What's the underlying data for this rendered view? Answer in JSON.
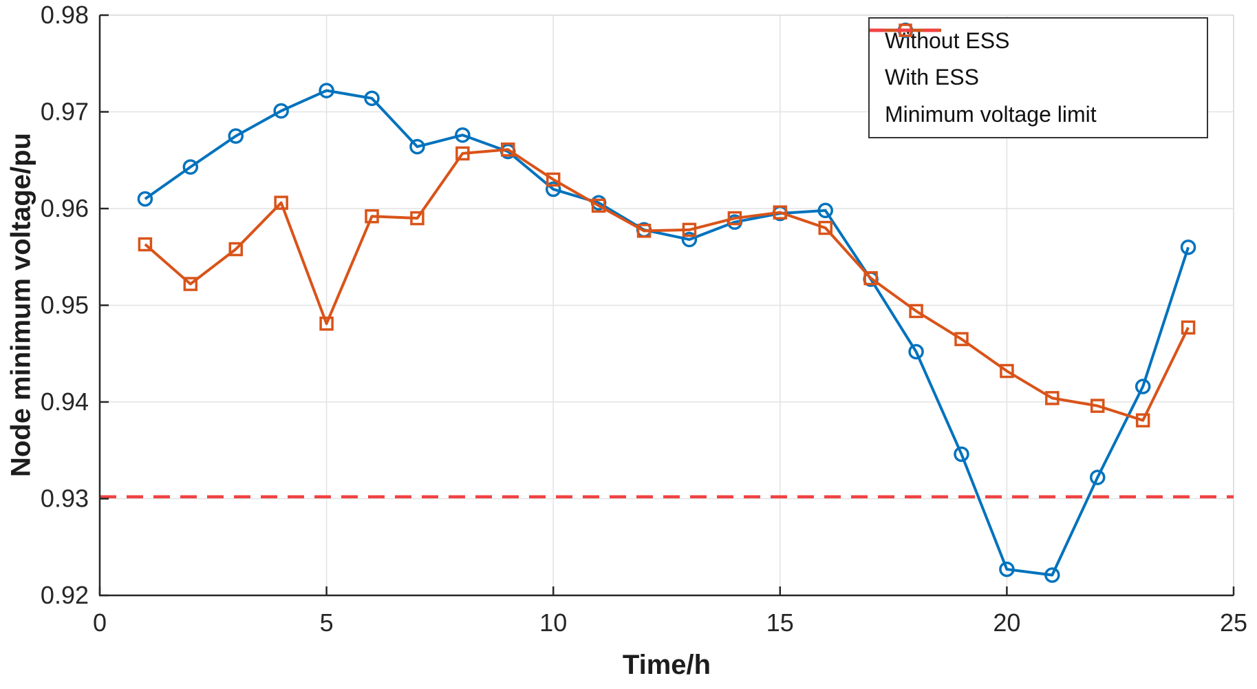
{
  "chart_data": {
    "type": "line",
    "title": "",
    "xlabel": "Time/h",
    "ylabel": "Node minimum voltage/pu",
    "xlim": [
      0,
      25
    ],
    "ylim": [
      0.92,
      0.98
    ],
    "x_ticks": [
      0,
      5,
      10,
      15,
      20,
      25
    ],
    "y_ticks": [
      0.92,
      0.93,
      0.94,
      0.95,
      0.96,
      0.97,
      0.98
    ],
    "grid": true,
    "legend_position": "top-right",
    "x": [
      1,
      2,
      3,
      4,
      5,
      6,
      7,
      8,
      9,
      10,
      11,
      12,
      13,
      14,
      15,
      16,
      17,
      18,
      19,
      20,
      21,
      22,
      23,
      24
    ],
    "series": [
      {
        "name": "Without ESS",
        "color": "#0072BD",
        "marker": "circle",
        "values": [
          0.961,
          0.9643,
          0.9675,
          0.9701,
          0.9722,
          0.9714,
          0.9664,
          0.9676,
          0.9659,
          0.962,
          0.9606,
          0.9578,
          0.9568,
          0.9586,
          0.9595,
          0.9598,
          0.9527,
          0.9452,
          0.9346,
          0.9227,
          0.9221,
          0.9322,
          0.9416,
          0.956
        ]
      },
      {
        "name": "With ESS",
        "color": "#D95319",
        "marker": "square",
        "values": [
          0.9563,
          0.9522,
          0.9558,
          0.9606,
          0.9481,
          0.9592,
          0.959,
          0.9657,
          0.9661,
          0.963,
          0.9603,
          0.9577,
          0.9578,
          0.959,
          0.9596,
          0.958,
          0.9528,
          0.9494,
          0.9465,
          0.9432,
          0.9404,
          0.9396,
          0.9381,
          0.9477
        ]
      }
    ],
    "limit_line": {
      "label": "Minimum voltage limit",
      "value": 0.9302,
      "color": "#F04343",
      "style": "dashed"
    },
    "axis_color": "#262626",
    "grid_color": "#E2E2E2",
    "minor_edge_color": "#D6D6D6",
    "tick_label_color": "#262626"
  }
}
